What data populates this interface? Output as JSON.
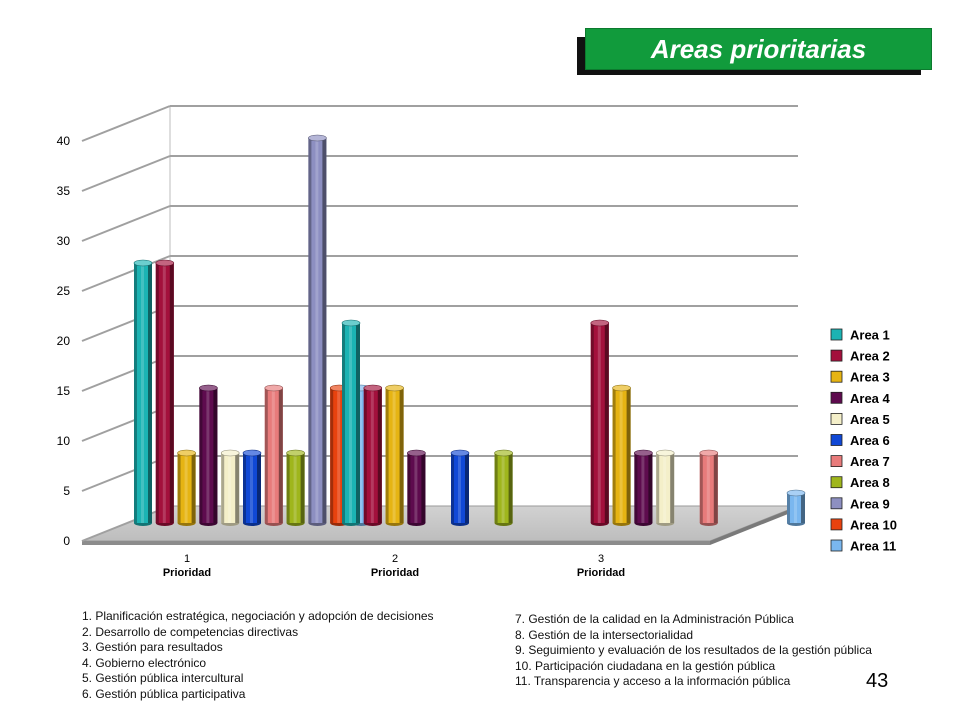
{
  "title": "Areas prioritarias",
  "page_number": "43",
  "notes_left": [
    "1. Planificación estratégica, negociación y adopción de decisiones",
    "2. Desarrollo de competencias directivas",
    "3. Gestión para resultados",
    "4. Gobierno electrónico",
    "5. Gestión pública intercultural",
    "6. Gestión pública participativa"
  ],
  "notes_right": [
    "7. Gestión de la calidad en la Administración Pública",
    "8. Gestión de la intersectorialidad",
    "9. Seguimiento y evaluación de los resultados de la gestión pública",
    "10.  Participación ciudadana en la gestión pública",
    "11. Transparencia  y acceso a la información pública"
  ],
  "chart_data": {
    "type": "bar",
    "style": "3d-cylinder",
    "categories": [
      "1",
      "2",
      "3"
    ],
    "category_label": "Prioridad",
    "ylim": [
      0,
      40
    ],
    "yticks": [
      0,
      5,
      10,
      15,
      20,
      25,
      30,
      35,
      40
    ],
    "grid": true,
    "legend_position": "right",
    "series": [
      {
        "name": "Area 1",
        "color": "#1bb3b3",
        "values": [
          26,
          20,
          null
        ]
      },
      {
        "name": "Area 2",
        "color": "#a3103c",
        "values": [
          26,
          13.5,
          20
        ]
      },
      {
        "name": "Area 3",
        "color": "#e6b413",
        "values": [
          7,
          13.5,
          13.5
        ]
      },
      {
        "name": "Area 4",
        "color": "#5e0b4e",
        "values": [
          13.5,
          7,
          7
        ]
      },
      {
        "name": "Area 5",
        "color": "#f4efc9",
        "values": [
          7,
          null,
          7
        ]
      },
      {
        "name": "Area 6",
        "color": "#1048d6",
        "values": [
          7,
          7,
          null
        ]
      },
      {
        "name": "Area 7",
        "color": "#e87b7b",
        "values": [
          13.5,
          null,
          7
        ]
      },
      {
        "name": "Area 8",
        "color": "#9fb61c",
        "values": [
          7,
          7,
          null
        ]
      },
      {
        "name": "Area 9",
        "color": "#8d8fc1",
        "values": [
          38.5,
          null,
          null
        ]
      },
      {
        "name": "Area 10",
        "color": "#e8420e",
        "values": [
          13.5,
          null,
          null
        ]
      },
      {
        "name": "Area 11",
        "color": "#7ab7ef",
        "values": [
          13.5,
          null,
          3
        ]
      }
    ]
  }
}
